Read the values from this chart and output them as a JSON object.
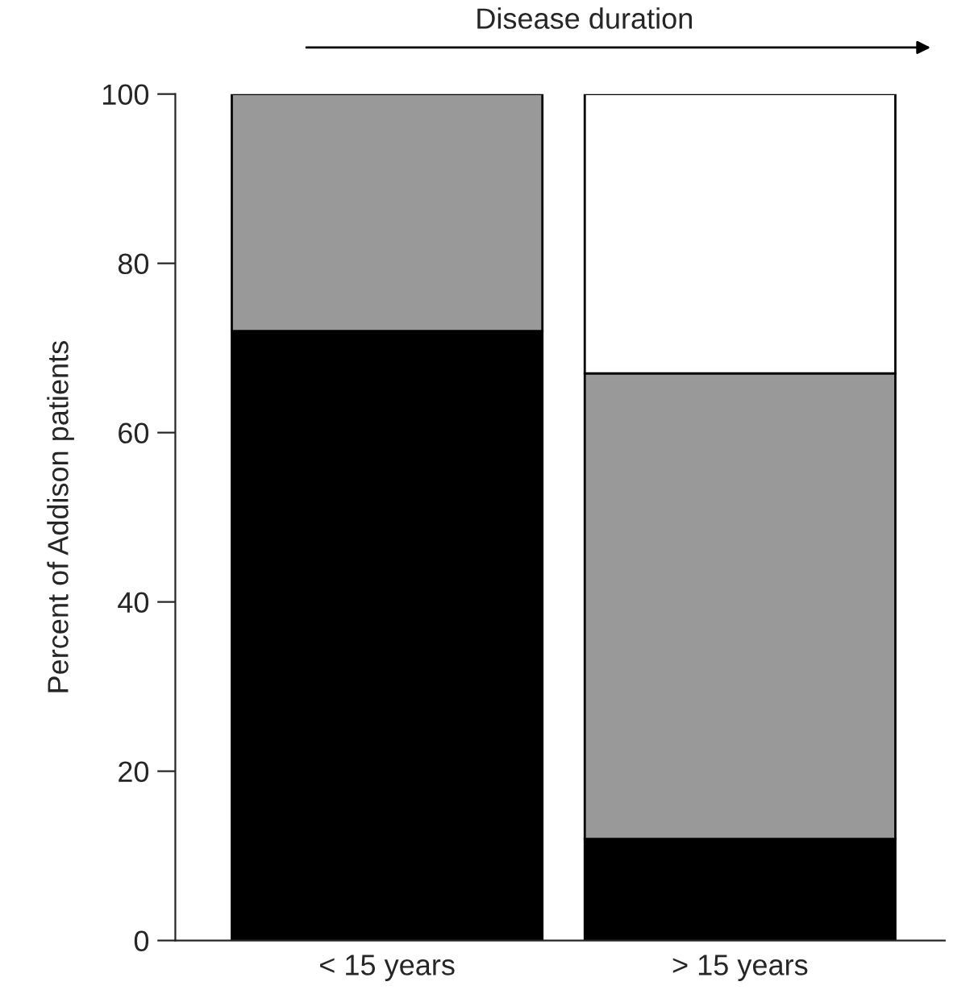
{
  "chart_data": {
    "type": "bar",
    "stacked": true,
    "title": "Disease duration",
    "ylabel": "Percent of Addison patients",
    "categories": [
      "< 15 years",
      "> 15 years"
    ],
    "series": [
      {
        "color": "#000000",
        "values": [
          72,
          12
        ]
      },
      {
        "color": "#999999",
        "values": [
          28,
          55
        ]
      },
      {
        "color": "#ffffff",
        "values": [
          null,
          33
        ]
      }
    ],
    "ylim": [
      0,
      100
    ],
    "yticks": [
      0,
      20,
      40,
      60,
      80,
      100
    ],
    "grid": false,
    "legend": false
  }
}
